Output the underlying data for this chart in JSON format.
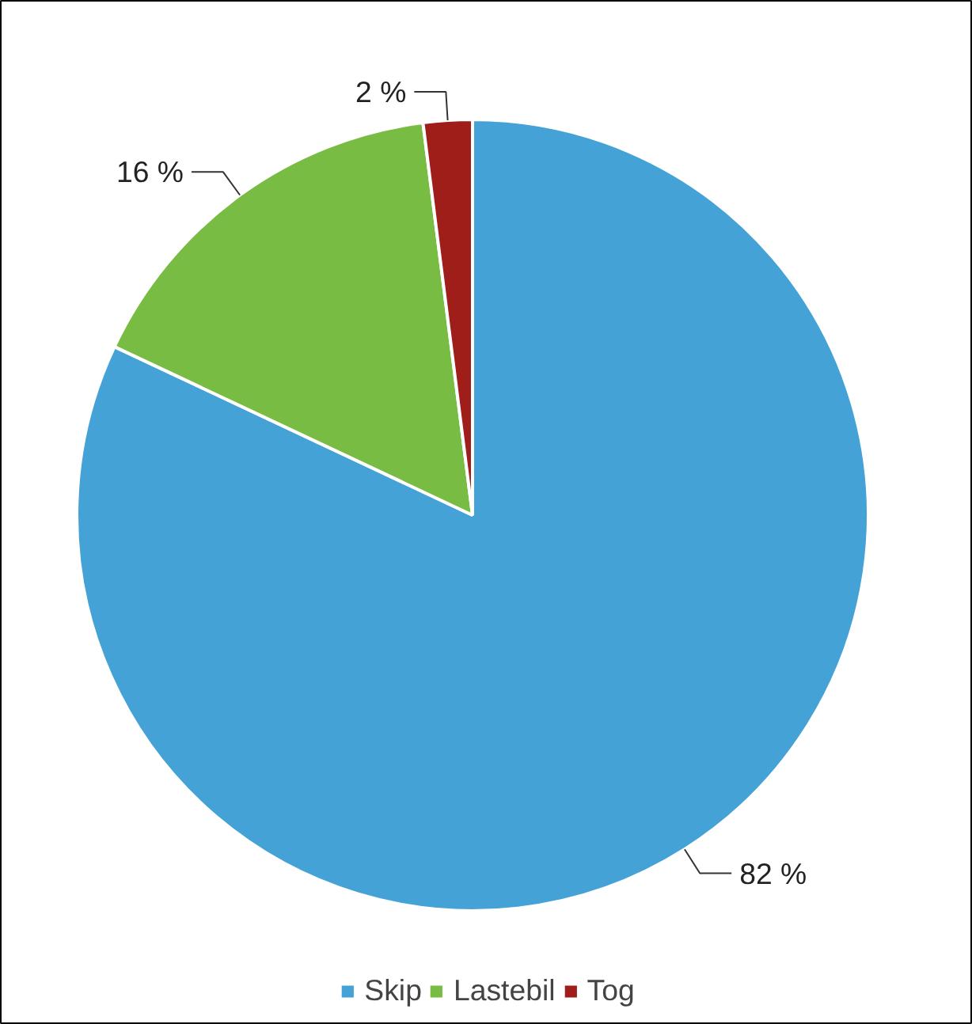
{
  "chart_data": {
    "type": "pie",
    "categories": [
      "Skip",
      "Lastebil",
      "Tog"
    ],
    "values": [
      82,
      16,
      2
    ],
    "colors": [
      "#44a2d6",
      "#78bc43",
      "#a01e1a"
    ],
    "value_labels": [
      "82 %",
      "16 %",
      "2 %"
    ],
    "legend": "bottom"
  }
}
